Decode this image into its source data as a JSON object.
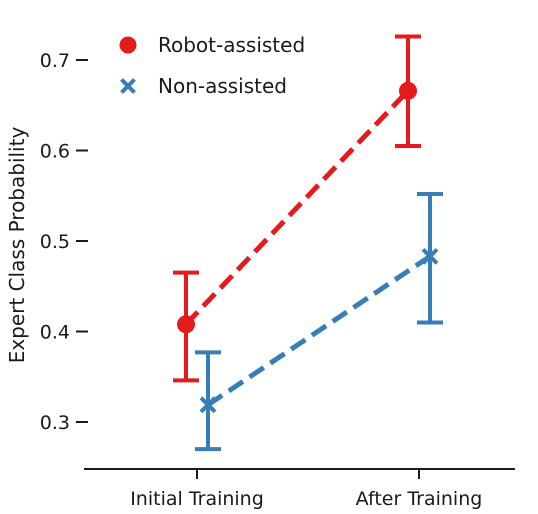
{
  "chart_data": {
    "type": "line",
    "categories": [
      "Initial Training",
      "After Training"
    ],
    "ylabel": "Expert Class Probability",
    "xlabel": "",
    "ylim": [
      0.25,
      0.75
    ],
    "yticks": [
      0.3,
      0.4,
      0.5,
      0.6,
      0.7
    ],
    "ytick_labels": [
      "0.3",
      "0.4",
      "0.5",
      "0.6",
      "0.7"
    ],
    "grid": false,
    "legend_position": "top-left",
    "series": [
      {
        "name": "Robot-assisted",
        "color": "#e41a1c",
        "marker": "circle",
        "values": [
          0.408,
          0.666
        ],
        "lower": [
          0.346,
          0.605
        ],
        "upper": [
          0.465,
          0.726
        ]
      },
      {
        "name": "Non-assisted",
        "color": "#377eb8",
        "marker": "x",
        "values": [
          0.319,
          0.483
        ],
        "lower": [
          0.27,
          0.41
        ],
        "upper": [
          0.377,
          0.552
        ]
      }
    ]
  }
}
